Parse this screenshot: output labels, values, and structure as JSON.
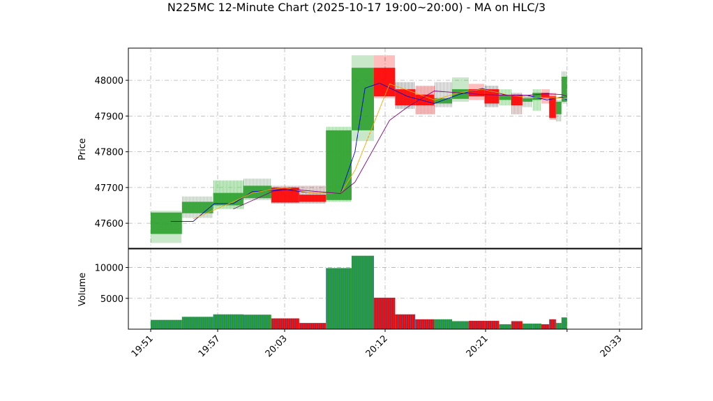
{
  "chart_data": {
    "type": "candlestick",
    "title": "N225MC 12-Minute Chart (2025-10-17 19:00~20:00) - MA on HLC/3",
    "xlabel": "",
    "price_panel": {
      "ylabel": "Price",
      "ylim": [
        47530,
        48090
      ],
      "yticks": [
        "47600",
        "47700",
        "47800",
        "47900",
        "48000"
      ],
      "ytick_values": [
        47600,
        47700,
        47800,
        47900,
        48000
      ],
      "grid": true
    },
    "volume_panel": {
      "ylabel": "Volume",
      "ylim": [
        0,
        13000
      ],
      "yticks": [
        "5000",
        "10000"
      ],
      "ytick_values": [
        5000,
        10000
      ],
      "grid": true
    },
    "xticks": [
      "19:51",
      "19:57",
      "20:03",
      "20:12",
      "20:21",
      "20:33"
    ],
    "xtick_minutes": [
      0,
      6,
      12,
      21,
      30,
      42
    ],
    "x_range_minutes": [
      -2,
      44
    ],
    "colors": {
      "up": "#2ca02c",
      "down": "#ff0000",
      "ma_short": "#0000cd",
      "ma_mid": "#ffa500",
      "ma_long": "#800080",
      "volume_edge": "#1f77b4",
      "grid": "#b0b0b0"
    },
    "candles": [
      {
        "t0": 0.0,
        "t1": 2.8,
        "open": 47570,
        "high": 47635,
        "low": 47545,
        "close": 47630,
        "volume": 1500
      },
      {
        "t0": 2.8,
        "t1": 5.6,
        "open": 47628,
        "high": 47675,
        "low": 47615,
        "close": 47660,
        "volume": 2000
      },
      {
        "t0": 5.6,
        "t1": 8.3,
        "open": 47650,
        "high": 47720,
        "low": 47640,
        "close": 47685,
        "volume": 2400
      },
      {
        "t0": 8.3,
        "t1": 10.8,
        "open": 47670,
        "high": 47725,
        "low": 47665,
        "close": 47705,
        "volume": 2350
      },
      {
        "t0": 10.8,
        "t1": 13.3,
        "open": 47700,
        "high": 47705,
        "low": 47655,
        "close": 47658,
        "volume": 1750
      },
      {
        "t0": 13.3,
        "t1": 15.7,
        "open": 47680,
        "high": 47705,
        "low": 47655,
        "close": 47660,
        "volume": 1000
      },
      {
        "t0": 15.7,
        "t1": 18.0,
        "open": 47665,
        "high": 47870,
        "low": 47660,
        "close": 47860,
        "volume": 9900
      },
      {
        "t0": 18.0,
        "t1": 20.0,
        "open": 47860,
        "high": 48070,
        "low": 47830,
        "close": 48035,
        "volume": 11900
      },
      {
        "t0": 20.0,
        "t1": 21.9,
        "open": 48035,
        "high": 48070,
        "low": 47950,
        "close": 47955,
        "volume": 5100
      },
      {
        "t0": 21.9,
        "t1": 23.7,
        "open": 47975,
        "high": 47995,
        "low": 47920,
        "close": 47930,
        "volume": 2400
      },
      {
        "t0": 23.7,
        "t1": 25.4,
        "open": 47960,
        "high": 47985,
        "low": 47905,
        "close": 47930,
        "volume": 1600
      },
      {
        "t0": 25.4,
        "t1": 27.0,
        "open": 47935,
        "high": 47995,
        "low": 47925,
        "close": 47950,
        "volume": 1600
      },
      {
        "t0": 27.0,
        "t1": 28.5,
        "open": 47948,
        "high": 48008,
        "low": 47940,
        "close": 47975,
        "volume": 1300
      },
      {
        "t0": 28.5,
        "t1": 29.9,
        "open": 47975,
        "high": 47990,
        "low": 47945,
        "close": 47955,
        "volume": 1350
      },
      {
        "t0": 29.9,
        "t1": 31.2,
        "open": 47975,
        "high": 47985,
        "low": 47925,
        "close": 47935,
        "volume": 1350
      },
      {
        "t0": 31.2,
        "t1": 32.3,
        "open": 47945,
        "high": 47975,
        "low": 47930,
        "close": 47960,
        "volume": 800
      },
      {
        "t0": 32.3,
        "t1": 33.3,
        "open": 47960,
        "high": 47965,
        "low": 47905,
        "close": 47930,
        "volume": 1300
      },
      {
        "t0": 33.3,
        "t1": 34.2,
        "open": 47940,
        "high": 47960,
        "low": 47925,
        "close": 47950,
        "volume": 900
      },
      {
        "t0": 34.2,
        "t1": 35.0,
        "open": 47945,
        "high": 47975,
        "low": 47915,
        "close": 47965,
        "volume": 900
      },
      {
        "t0": 35.0,
        "t1": 35.7,
        "open": 47965,
        "high": 47975,
        "low": 47935,
        "close": 47950,
        "volume": 800
      },
      {
        "t0": 35.7,
        "t1": 36.3,
        "open": 47955,
        "high": 47965,
        "low": 47890,
        "close": 47895,
        "volume": 1600
      },
      {
        "t0": 36.3,
        "t1": 36.8,
        "open": 47905,
        "high": 47945,
        "low": 47885,
        "close": 47940,
        "volume": 1000
      },
      {
        "t0": 36.8,
        "t1": 37.3,
        "open": 47940,
        "high": 48025,
        "low": 47935,
        "close": 48010,
        "volume": 1900
      }
    ],
    "series": [
      {
        "x": [
          1.8,
          3.8,
          5.7,
          7.4,
          9.1,
          12.0,
          14.2,
          17.0,
          18.3,
          19.2,
          20.5,
          23.0,
          25.4,
          27.6,
          29.7,
          31.9,
          33.7,
          35.5,
          36.8,
          37.3
        ],
        "y": [
          47605,
          47605,
          47655,
          47655,
          47688,
          47695,
          47685,
          47683,
          47800,
          47978,
          47992,
          47955,
          47935,
          47960,
          47977,
          47958,
          47958,
          47945,
          47953,
          47945
        ]
      },
      {
        "x": [
          3.8,
          7.4,
          9.1,
          12.0,
          14.2,
          17.0,
          18.3,
          20.0,
          21.4,
          22.8,
          25.4,
          27.6,
          29.7,
          31.9,
          33.7,
          35.5,
          36.8,
          37.3
        ],
        "y": [
          47612,
          47660,
          47685,
          47700,
          47685,
          47683,
          47748,
          47880,
          47990,
          47975,
          47945,
          47965,
          47975,
          47960,
          47952,
          47952,
          47950,
          47948
        ]
      },
      {
        "x": [
          7.4,
          11.0,
          12.6,
          17.0,
          18.3,
          21.4,
          23.0,
          25.4,
          27.6,
          29.7,
          31.9,
          33.7,
          35.5,
          36.8,
          37.3
        ],
        "y": [
          47640,
          47690,
          47695,
          47683,
          47715,
          47888,
          47925,
          47970,
          47965,
          47960,
          47958,
          47958,
          47962,
          47960,
          47955
        ]
      }
    ]
  }
}
